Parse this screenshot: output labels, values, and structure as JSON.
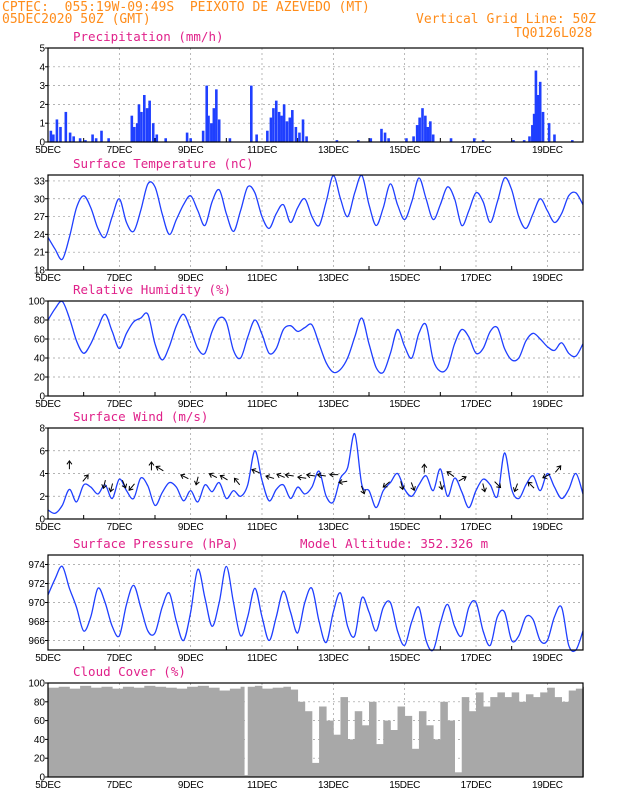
{
  "header": {
    "line1": "CPTEC:  055:19W-09:49S  PEIXOTO DE AZEVEDO (MT)",
    "line2": "05DEC2020 50Z (GMT)",
    "grid_note": "Vertical Grid Line: 50Z",
    "code": "TQ0126L028"
  },
  "colors": {
    "header": "#ff8c1a",
    "title": "#e0218a",
    "line": "#1f3fff",
    "bar": "#1f3fff",
    "cloud": "#a8a8a8",
    "grid": "#9a9a9a"
  },
  "x_ticks": [
    "5DEC",
    "7DEC",
    "9DEC",
    "11DEC",
    "13DEC",
    "15DEC",
    "17DEC",
    "19DEC"
  ],
  "x_tick_days": [
    5,
    7,
    9,
    11,
    13,
    15,
    17,
    19
  ],
  "x_range": [
    5,
    20
  ],
  "chart_data": [
    {
      "type": "bar",
      "title": "Precipitation (mm/h)",
      "ylim": [
        0,
        5
      ],
      "yticks": [
        0,
        1,
        2,
        3,
        4,
        5
      ],
      "x_day": [
        5.08,
        5.15,
        5.25,
        5.35,
        5.5,
        5.62,
        5.72,
        5.9,
        6.05,
        6.25,
        6.35,
        6.5,
        6.7,
        7.35,
        7.42,
        7.5,
        7.55,
        7.62,
        7.7,
        7.78,
        7.85,
        7.95,
        8.05,
        8.3,
        8.9,
        9.0,
        9.35,
        9.45,
        9.5,
        9.58,
        9.65,
        9.72,
        9.8,
        10.1,
        10.7,
        10.85,
        11.15,
        11.25,
        11.32,
        11.4,
        11.48,
        11.55,
        11.62,
        11.7,
        11.78,
        11.85,
        11.95,
        12.05,
        12.15,
        12.25,
        13.1,
        13.7,
        14.05,
        14.35,
        14.45,
        14.55,
        15.05,
        15.25,
        15.35,
        15.42,
        15.5,
        15.58,
        15.65,
        15.72,
        15.8,
        16.3,
        16.95,
        17.2,
        18.05,
        18.35,
        18.5,
        18.58,
        18.63,
        18.68,
        18.73,
        18.8,
        18.88,
        19.05,
        19.2,
        19.7
      ],
      "values": [
        0.6,
        0.4,
        1.2,
        0.8,
        1.6,
        0.5,
        0.3,
        0.2,
        0.1,
        0.4,
        0.2,
        0.6,
        0.2,
        1.4,
        0.8,
        1.0,
        2.0,
        1.6,
        2.5,
        1.8,
        2.2,
        1.0,
        0.4,
        0.2,
        0.5,
        0.2,
        0.6,
        3.0,
        1.4,
        1.0,
        1.8,
        2.8,
        1.2,
        0.2,
        3.0,
        0.4,
        0.6,
        1.3,
        1.8,
        2.2,
        1.6,
        1.4,
        2.0,
        1.1,
        1.3,
        1.7,
        0.8,
        0.5,
        1.2,
        0.3,
        0.1,
        0.1,
        0.2,
        0.7,
        0.5,
        0.2,
        0.2,
        0.3,
        0.9,
        1.3,
        1.8,
        1.4,
        0.8,
        1.1,
        0.4,
        0.2,
        0.2,
        0.1,
        0.1,
        0.1,
        0.3,
        0.9,
        1.5,
        3.8,
        2.5,
        3.2,
        1.6,
        1.0,
        0.4,
        0.1
      ]
    },
    {
      "type": "line",
      "title": "Surface Temperature (nC)",
      "ylim": [
        18,
        34
      ],
      "yticks": [
        18,
        21,
        24,
        27,
        30,
        33
      ],
      "x_day": [
        5.0,
        5.2,
        5.4,
        5.6,
        5.8,
        6.0,
        6.2,
        6.4,
        6.6,
        6.8,
        7.0,
        7.2,
        7.4,
        7.6,
        7.8,
        8.0,
        8.2,
        8.4,
        8.6,
        8.8,
        9.0,
        9.2,
        9.4,
        9.6,
        9.8,
        10.0,
        10.2,
        10.4,
        10.6,
        10.8,
        11.0,
        11.2,
        11.4,
        11.6,
        11.8,
        12.0,
        12.2,
        12.4,
        12.6,
        12.8,
        13.0,
        13.2,
        13.4,
        13.6,
        13.8,
        14.0,
        14.2,
        14.4,
        14.6,
        14.8,
        15.0,
        15.2,
        15.4,
        15.6,
        15.8,
        16.0,
        16.2,
        16.4,
        16.6,
        16.8,
        17.0,
        17.2,
        17.4,
        17.6,
        17.8,
        18.0,
        18.2,
        18.4,
        18.6,
        18.8,
        19.0,
        19.2,
        19.4,
        19.6,
        19.8,
        20.0
      ],
      "y": [
        23.5,
        21.5,
        19.8,
        23.5,
        28.5,
        30.5,
        28.5,
        25.0,
        23.5,
        27.0,
        30.0,
        26.0,
        24.5,
        28.0,
        32.5,
        32.0,
        27.5,
        24.0,
        26.5,
        29.0,
        30.5,
        28.0,
        25.5,
        29.5,
        31.5,
        27.5,
        24.5,
        28.0,
        32.0,
        31.0,
        27.0,
        25.0,
        27.5,
        29.0,
        26.0,
        28.5,
        30.0,
        27.0,
        25.5,
        29.5,
        34.0,
        30.0,
        27.0,
        31.0,
        34.0,
        29.0,
        25.5,
        28.5,
        32.5,
        29.0,
        26.5,
        29.5,
        33.5,
        30.0,
        26.5,
        29.0,
        32.0,
        30.0,
        25.5,
        28.0,
        31.0,
        29.5,
        26.0,
        29.5,
        33.5,
        31.5,
        27.0,
        25.0,
        27.5,
        30.0,
        28.0,
        26.0,
        27.5,
        30.5,
        31.0,
        29.0
      ]
    },
    {
      "type": "line",
      "title": "Relative Humidity (%)",
      "ylim": [
        0,
        100
      ],
      "yticks": [
        0,
        20,
        40,
        60,
        80,
        100
      ],
      "x_day": [
        5.0,
        5.2,
        5.4,
        5.6,
        5.8,
        6.0,
        6.2,
        6.4,
        6.6,
        6.8,
        7.0,
        7.2,
        7.4,
        7.6,
        7.8,
        8.0,
        8.2,
        8.4,
        8.6,
        8.8,
        9.0,
        9.2,
        9.4,
        9.6,
        9.8,
        10.0,
        10.2,
        10.4,
        10.6,
        10.8,
        11.0,
        11.2,
        11.4,
        11.6,
        11.8,
        12.0,
        12.2,
        12.4,
        12.6,
        12.8,
        13.0,
        13.2,
        13.4,
        13.6,
        13.8,
        14.0,
        14.2,
        14.4,
        14.6,
        14.8,
        15.0,
        15.2,
        15.4,
        15.6,
        15.8,
        16.0,
        16.2,
        16.4,
        16.6,
        16.8,
        17.0,
        17.2,
        17.4,
        17.6,
        17.8,
        18.0,
        18.2,
        18.4,
        18.6,
        18.8,
        19.0,
        19.2,
        19.4,
        19.6,
        19.8,
        20.0
      ],
      "y": [
        80,
        92,
        100,
        82,
        58,
        45,
        55,
        72,
        86,
        68,
        50,
        66,
        78,
        82,
        86,
        55,
        38,
        52,
        74,
        86,
        70,
        50,
        45,
        68,
        82,
        78,
        48,
        40,
        62,
        80,
        65,
        45,
        50,
        70,
        74,
        68,
        72,
        75,
        55,
        35,
        25,
        28,
        40,
        62,
        82,
        55,
        30,
        25,
        45,
        70,
        52,
        40,
        66,
        75,
        38,
        26,
        30,
        55,
        70,
        62,
        45,
        50,
        68,
        72,
        50,
        38,
        40,
        58,
        66,
        60,
        52,
        48,
        56,
        45,
        42,
        55
      ]
    },
    {
      "type": "line",
      "title": "Surface Wind (m/s)",
      "ylim": [
        0,
        8
      ],
      "yticks": [
        0,
        2,
        4,
        6,
        8
      ],
      "x_day": [
        5.0,
        5.2,
        5.4,
        5.6,
        5.8,
        6.0,
        6.2,
        6.4,
        6.6,
        6.8,
        7.0,
        7.2,
        7.4,
        7.6,
        7.8,
        8.0,
        8.2,
        8.4,
        8.6,
        8.8,
        9.0,
        9.2,
        9.4,
        9.6,
        9.8,
        10.0,
        10.2,
        10.4,
        10.6,
        10.8,
        11.0,
        11.2,
        11.4,
        11.6,
        11.8,
        12.0,
        12.2,
        12.4,
        12.6,
        12.8,
        13.0,
        13.2,
        13.4,
        13.6,
        13.8,
        14.0,
        14.2,
        14.4,
        14.6,
        14.8,
        15.0,
        15.2,
        15.4,
        15.6,
        15.8,
        16.0,
        16.2,
        16.4,
        16.6,
        16.8,
        17.0,
        17.2,
        17.4,
        17.6,
        17.8,
        18.0,
        18.2,
        18.4,
        18.6,
        18.8,
        19.0,
        19.2,
        19.4,
        19.6,
        19.8,
        20.0
      ],
      "y": [
        0.8,
        0.5,
        1.2,
        2.6,
        1.5,
        3.0,
        2.8,
        2.2,
        3.0,
        1.8,
        3.5,
        2.5,
        1.8,
        3.6,
        2.9,
        1.2,
        2.3,
        3.2,
        2.8,
        1.6,
        2.5,
        1.5,
        3.0,
        2.4,
        3.2,
        1.8,
        2.5,
        2.0,
        3.0,
        6.0,
        3.4,
        1.6,
        2.6,
        3.0,
        1.8,
        2.8,
        2.2,
        2.8,
        4.2,
        2.0,
        1.5,
        3.6,
        4.5,
        7.5,
        3.0,
        2.5,
        1.0,
        2.5,
        3.2,
        4.0,
        2.6,
        2.0,
        3.0,
        3.8,
        2.5,
        4.4,
        2.0,
        3.6,
        2.4,
        1.0,
        2.5,
        3.5,
        3.0,
        2.0,
        5.8,
        2.6,
        1.8,
        3.0,
        3.8,
        2.5,
        4.0,
        2.8,
        1.8,
        2.6,
        4.0,
        2.2
      ],
      "arrows": {
        "x_day": [
          5.6,
          6.0,
          6.6,
          6.8,
          7.1,
          7.4,
          7.9,
          8.2,
          8.9,
          9.2,
          9.7,
          10.0,
          10.35,
          10.9,
          11.3,
          11.6,
          11.85,
          12.2,
          12.45,
          12.75,
          13.1,
          13.35,
          13.8,
          14.55,
          14.9,
          15.2,
          15.55,
          16.0,
          16.35,
          16.55,
          17.2,
          17.55,
          18.15,
          18.6,
          19.05,
          19.25
        ],
        "level": [
          4.5,
          3.4,
          3.3,
          3.0,
          3.3,
          3.0,
          4.4,
          4.3,
          3.6,
          3.6,
          3.7,
          3.5,
          3.1,
          4.1,
          3.6,
          3.7,
          3.8,
          3.6,
          3.8,
          3.8,
          3.9,
          3.3,
          2.8,
          3.2,
          3.2,
          3.1,
          4.2,
          3.2,
          3.8,
          3.4,
          3.0,
          3.2,
          3.0,
          2.8,
          3.9,
          4.2
        ],
        "dx": [
          0,
          0.5,
          -0.2,
          -0.2,
          0.3,
          -0.5,
          0,
          -0.5,
          -0.6,
          -0.2,
          -0.6,
          -0.5,
          -0.4,
          -0.7,
          -0.7,
          -0.7,
          -0.7,
          -0.7,
          -0.7,
          -0.7,
          -0.7,
          -0.7,
          0.3,
          -0.6,
          0.2,
          0.3,
          0,
          0.2,
          -0.7,
          0.7,
          0.2,
          0.6,
          -0.3,
          -0.5,
          -0.6,
          0.5
        ],
        "dy": [
          1,
          0.6,
          -0.8,
          -0.8,
          -0.7,
          -0.6,
          1,
          0.3,
          0.3,
          -0.8,
          0.3,
          0.3,
          0.5,
          0.3,
          0.2,
          0.3,
          0.1,
          0.1,
          0.1,
          0.1,
          0,
          -0.1,
          -0.8,
          -0.5,
          -0.8,
          -0.8,
          1,
          -0.8,
          0.5,
          0.4,
          -0.8,
          -0.6,
          -0.8,
          0.5,
          -0.3,
          0.6
        ]
      }
    },
    {
      "type": "line",
      "title": "Surface Pressure (hPa)",
      "annotation": "Model Altitude: 352.326 m",
      "ylim": [
        965,
        975
      ],
      "yticks": [
        966,
        968,
        970,
        972,
        974
      ],
      "x_day": [
        5.0,
        5.2,
        5.4,
        5.6,
        5.8,
        6.0,
        6.2,
        6.4,
        6.6,
        6.8,
        7.0,
        7.2,
        7.4,
        7.6,
        7.8,
        8.0,
        8.2,
        8.4,
        8.6,
        8.8,
        9.0,
        9.2,
        9.4,
        9.6,
        9.8,
        10.0,
        10.2,
        10.4,
        10.6,
        10.8,
        11.0,
        11.2,
        11.4,
        11.6,
        11.8,
        12.0,
        12.2,
        12.4,
        12.6,
        12.8,
        13.0,
        13.2,
        13.4,
        13.6,
        13.8,
        14.0,
        14.2,
        14.4,
        14.6,
        14.8,
        15.0,
        15.2,
        15.4,
        15.6,
        15.8,
        16.0,
        16.2,
        16.4,
        16.6,
        16.8,
        17.0,
        17.2,
        17.4,
        17.6,
        17.8,
        18.0,
        18.2,
        18.4,
        18.6,
        18.8,
        19.0,
        19.2,
        19.4,
        19.6,
        19.8,
        20.0
      ],
      "y": [
        970.8,
        972.5,
        973.8,
        971.5,
        969.5,
        967.0,
        968.5,
        971.5,
        970.0,
        967.5,
        966.5,
        969.8,
        971.8,
        969.5,
        967.0,
        966.8,
        969.5,
        971.0,
        968.0,
        966.0,
        969.0,
        973.5,
        970.5,
        967.5,
        970.0,
        973.8,
        970.0,
        966.5,
        968.5,
        971.5,
        968.5,
        966.0,
        968.5,
        971.2,
        969.0,
        966.8,
        970.0,
        971.5,
        968.0,
        965.8,
        969.0,
        971.0,
        967.5,
        966.5,
        970.5,
        969.0,
        967.0,
        969.5,
        970.0,
        967.0,
        965.5,
        968.0,
        969.5,
        966.0,
        964.5,
        967.8,
        969.8,
        967.5,
        966.5,
        969.5,
        970.0,
        967.0,
        965.5,
        968.5,
        969.0,
        966.0,
        966.5,
        968.5,
        968.2,
        966.0,
        966.0,
        968.5,
        969.5,
        965.5,
        965.0,
        967.0
      ]
    },
    {
      "type": "area",
      "title": "Cloud Cover (%)",
      "ylim": [
        0,
        100
      ],
      "yticks": [
        0,
        20,
        40,
        60,
        80,
        100
      ],
      "x_day": [
        5.0,
        5.3,
        5.6,
        5.9,
        6.2,
        6.5,
        6.8,
        7.1,
        7.4,
        7.7,
        8.0,
        8.3,
        8.6,
        8.9,
        9.2,
        9.5,
        9.8,
        10.1,
        10.4,
        10.5,
        10.6,
        10.8,
        11.0,
        11.3,
        11.6,
        11.8,
        12.0,
        12.2,
        12.4,
        12.6,
        12.8,
        13.0,
        13.2,
        13.4,
        13.6,
        13.8,
        14.0,
        14.2,
        14.4,
        14.6,
        14.8,
        15.0,
        15.2,
        15.4,
        15.6,
        15.8,
        16.0,
        16.2,
        16.4,
        16.6,
        16.8,
        17.0,
        17.2,
        17.4,
        17.6,
        17.8,
        18.0,
        18.2,
        18.4,
        18.6,
        18.8,
        19.0,
        19.2,
        19.4,
        19.6,
        19.8,
        20.0
      ],
      "y": [
        95,
        96,
        94,
        97,
        95,
        96,
        94,
        96,
        95,
        97,
        96,
        95,
        94,
        96,
        97,
        95,
        92,
        94,
        96,
        2,
        96,
        97,
        94,
        95,
        96,
        93,
        80,
        70,
        15,
        75,
        60,
        45,
        85,
        40,
        70,
        55,
        80,
        35,
        60,
        50,
        75,
        65,
        30,
        70,
        55,
        40,
        80,
        60,
        5,
        85,
        70,
        90,
        75,
        85,
        90,
        85,
        90,
        80,
        88,
        85,
        90,
        95,
        85,
        80,
        92,
        94,
        96
      ]
    }
  ]
}
